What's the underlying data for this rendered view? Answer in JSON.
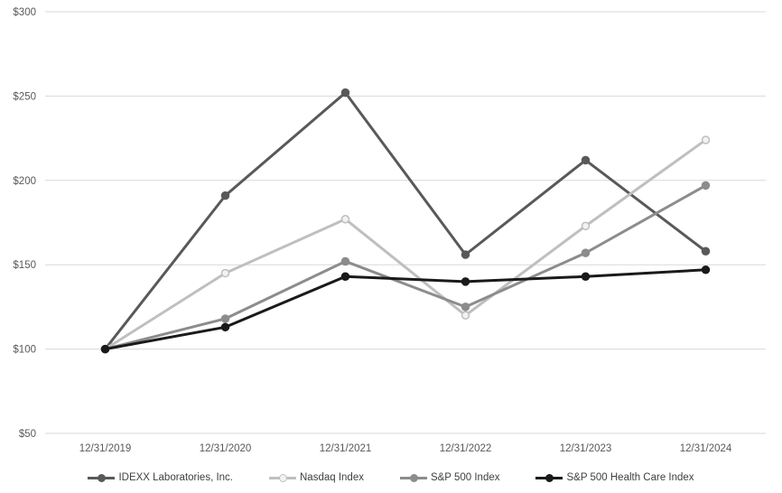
{
  "chart_data": {
    "type": "line",
    "title": "",
    "x_labels": [
      "12/31/2019",
      "12/31/2020",
      "12/31/2021",
      "12/31/2022",
      "12/31/2023",
      "12/31/2024"
    ],
    "series": [
      {
        "name": "IDEXX Laboratories, Inc.",
        "color": "#595959",
        "marker": "filled",
        "values": [
          100,
          191,
          252,
          156,
          212,
          158
        ]
      },
      {
        "name": "Nasdaq Index",
        "color": "#BFBFBF",
        "marker": "open",
        "marker_fill": "#F2F2F2",
        "values": [
          100,
          145,
          177,
          120,
          173,
          224
        ]
      },
      {
        "name": "S&P 500 Index",
        "color": "#8C8C8C",
        "marker": "filled",
        "values": [
          100,
          118,
          152,
          125,
          157,
          197
        ]
      },
      {
        "name": "S&P 500 Health Care Index",
        "color": "#1A1A1A",
        "marker": "filled",
        "values": [
          100,
          113,
          143,
          140,
          143,
          147
        ]
      }
    ],
    "y_ticks": [
      "$50",
      "$100",
      "$150",
      "$200",
      "$250",
      "$300"
    ],
    "y_tick_values": [
      50,
      100,
      150,
      200,
      250,
      300
    ],
    "ylim": [
      50,
      300
    ],
    "grid": "horizontal-only",
    "gridline_color": "#D9D9D9",
    "axis_text_color": "#595959",
    "legend_text_color": "#404040",
    "legend_position": "bottom-center",
    "line_width": 3,
    "marker_radius": 4
  }
}
